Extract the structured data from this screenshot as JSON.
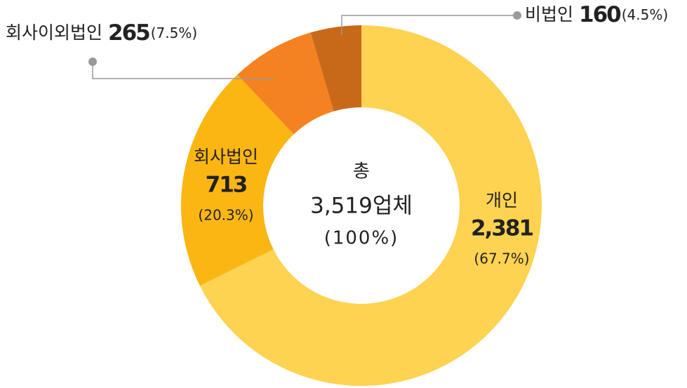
{
  "chart_data": {
    "type": "donut",
    "categories": [
      "개인",
      "회사법인",
      "회사이외법인",
      "비법인"
    ],
    "values": [
      2381,
      713,
      265,
      160
    ],
    "value_labels": [
      "2,381",
      "713",
      "265",
      "160"
    ],
    "percent_labels": [
      "(67.7%)",
      "(20.3%)",
      "(7.5%)",
      "(4.5%)"
    ],
    "colors": [
      "#fed352",
      "#fbb614",
      "#f58220",
      "#c8691a"
    ],
    "center_text": [
      "총",
      "3,519업체",
      "(100%)"
    ]
  }
}
